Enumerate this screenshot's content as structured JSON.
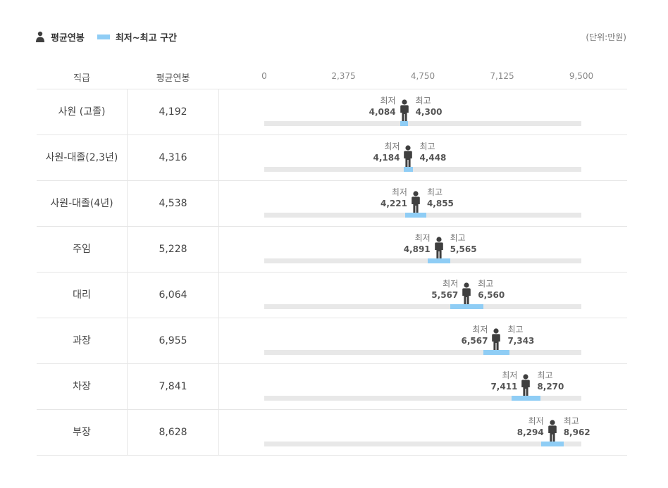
{
  "legend": {
    "average_label": "평균연봉",
    "range_label": "최저~최고 구간"
  },
  "unit": "(단위:만원)",
  "header": {
    "rank": "직급",
    "avg": "평균연봉"
  },
  "colors": {
    "track": "#e8e8e8",
    "range": "#8fcdf5",
    "figure": "#3f3f3f"
  },
  "labels": {
    "min": "최저",
    "max": "최고"
  },
  "chart_data": {
    "type": "range-bar",
    "xlim": [
      0,
      9500
    ],
    "ticks": [
      "0",
      "2,375",
      "4,750",
      "7,125",
      "9,500"
    ],
    "tick_values": [
      0,
      2375,
      4750,
      7125,
      9500
    ],
    "rows": [
      {
        "rank": "사원 (고졸)",
        "avg": 4192,
        "avg_label": "4,192",
        "min": 4084,
        "min_label": "4,084",
        "max": 4300,
        "max_label": "4,300"
      },
      {
        "rank": "사원-대졸(2,3년)",
        "avg": 4316,
        "avg_label": "4,316",
        "min": 4184,
        "min_label": "4,184",
        "max": 4448,
        "max_label": "4,448"
      },
      {
        "rank": "사원-대졸(4년)",
        "avg": 4538,
        "avg_label": "4,538",
        "min": 4221,
        "min_label": "4,221",
        "max": 4855,
        "max_label": "4,855"
      },
      {
        "rank": "주임",
        "avg": 5228,
        "avg_label": "5,228",
        "min": 4891,
        "min_label": "4,891",
        "max": 5565,
        "max_label": "5,565"
      },
      {
        "rank": "대리",
        "avg": 6064,
        "avg_label": "6,064",
        "min": 5567,
        "min_label": "5,567",
        "max": 6560,
        "max_label": "6,560"
      },
      {
        "rank": "과장",
        "avg": 6955,
        "avg_label": "6,955",
        "min": 6567,
        "min_label": "6,567",
        "max": 7343,
        "max_label": "7,343"
      },
      {
        "rank": "차장",
        "avg": 7841,
        "avg_label": "7,841",
        "min": 7411,
        "min_label": "7,411",
        "max": 8270,
        "max_label": "8,270"
      },
      {
        "rank": "부장",
        "avg": 8628,
        "avg_label": "8,628",
        "min": 8294,
        "min_label": "8,294",
        "max": 8962,
        "max_label": "8,962"
      }
    ]
  }
}
